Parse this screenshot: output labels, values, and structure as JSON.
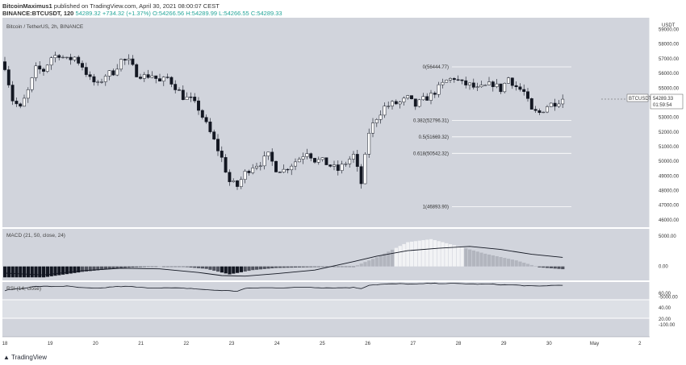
{
  "header": {
    "author": "BitcoinMaximus1",
    "published_text": "published on TradingView.com, April 30, 2021 08:00:07 CEST",
    "symbol": "BINANCE:BTCUSDT, 120",
    "last": "54289.32",
    "change": "+734.32 (+1.37%)",
    "open": "O:54266.56",
    "high": "H:54289.99",
    "low": "L:54266.55",
    "close": "C:54289.33"
  },
  "footer": {
    "brand": "TradingView"
  },
  "chart_data": {
    "type": "candlestick",
    "title": "Bitcoin / TetherUS, 2h, BINANCE",
    "currency": "USDT",
    "price_label": "BTCUSDT",
    "last_price": "54289.33",
    "countdown": "01:59:54",
    "ylim": [
      45500,
      59800
    ],
    "y_ticks": [
      "59000.00",
      "58000.00",
      "57000.00",
      "56000.00",
      "55000.00",
      "54000.00",
      "53000.00",
      "52000.00",
      "51000.00",
      "50000.00",
      "49000.00",
      "48000.00",
      "47000.00",
      "46000.00"
    ],
    "x_ticks": [
      "18",
      "19",
      "20",
      "21",
      "22",
      "23",
      "24",
      "25",
      "26",
      "27",
      "28",
      "29",
      "30",
      "May",
      "2"
    ],
    "close_path": [
      [
        0,
        56500
      ],
      [
        2,
        54200
      ],
      [
        4,
        53600
      ],
      [
        6,
        54800
      ],
      [
        8,
        56300
      ],
      [
        10,
        56200
      ],
      [
        12,
        57100
      ],
      [
        14,
        57300
      ],
      [
        16,
        56900
      ],
      [
        18,
        57100
      ],
      [
        20,
        56500
      ],
      [
        22,
        55600
      ],
      [
        24,
        55200
      ],
      [
        26,
        55900
      ],
      [
        28,
        56100
      ],
      [
        30,
        56900
      ],
      [
        32,
        56800
      ],
      [
        34,
        56000
      ],
      [
        36,
        55800
      ],
      [
        38,
        55900
      ],
      [
        40,
        55400
      ],
      [
        42,
        55700
      ],
      [
        44,
        55100
      ],
      [
        46,
        54400
      ],
      [
        48,
        54200
      ],
      [
        50,
        53600
      ],
      [
        52,
        52500
      ],
      [
        54,
        51400
      ],
      [
        56,
        50200
      ],
      [
        58,
        48600
      ],
      [
        60,
        48300
      ],
      [
        62,
        49200
      ],
      [
        64,
        49700
      ],
      [
        66,
        49900
      ],
      [
        68,
        50400
      ],
      [
        70,
        49500
      ],
      [
        72,
        49400
      ],
      [
        74,
        49800
      ],
      [
        76,
        50200
      ],
      [
        78,
        50700
      ],
      [
        80,
        50100
      ],
      [
        82,
        50000
      ],
      [
        84,
        49700
      ],
      [
        86,
        49400
      ],
      [
        88,
        49900
      ],
      [
        90,
        50400
      ],
      [
        92,
        48500
      ],
      [
        94,
        52000
      ],
      [
        96,
        53000
      ],
      [
        98,
        53700
      ],
      [
        100,
        53900
      ],
      [
        102,
        54000
      ],
      [
        104,
        54300
      ],
      [
        106,
        53800
      ],
      [
        108,
        54200
      ],
      [
        110,
        54500
      ],
      [
        112,
        55000
      ],
      [
        114,
        55500
      ],
      [
        116,
        55700
      ],
      [
        118,
        55300
      ],
      [
        120,
        55200
      ],
      [
        122,
        54900
      ],
      [
        124,
        55100
      ],
      [
        126,
        55300
      ],
      [
        128,
        54900
      ],
      [
        130,
        55700
      ],
      [
        132,
        55100
      ],
      [
        134,
        54700
      ],
      [
        136,
        53400
      ],
      [
        138,
        53300
      ],
      [
        140,
        53800
      ],
      [
        142,
        54000
      ],
      [
        144,
        54289
      ]
    ],
    "fibonacci": [
      {
        "label": "0(56444.77)",
        "value": 56444.77
      },
      {
        "label": "0.382(52796.31)",
        "value": 52796.31
      },
      {
        "label": "0.5(51669.32)",
        "value": 51669.32
      },
      {
        "label": "0.618(50542.32)",
        "value": 50542.32
      },
      {
        "label": "1(46893.90)",
        "value": 46893.9
      }
    ],
    "macd": {
      "label": "MACD (21, 50, close, 24)",
      "ylim": [
        -2300,
        6200
      ],
      "y_ticks": [
        "5000.00",
        "0.00",
        "-5000.00"
      ],
      "histogram_path": [
        [
          0,
          -1800
        ],
        [
          10,
          -1800
        ],
        [
          20,
          -900
        ],
        [
          30,
          -250
        ],
        [
          40,
          0
        ],
        [
          46,
          -50
        ],
        [
          52,
          -400
        ],
        [
          58,
          -1300
        ],
        [
          64,
          -600
        ],
        [
          70,
          -250
        ],
        [
          80,
          -100
        ],
        [
          90,
          -50
        ],
        [
          96,
          1500
        ],
        [
          104,
          4000
        ],
        [
          110,
          4500
        ],
        [
          116,
          3500
        ],
        [
          124,
          2100
        ],
        [
          132,
          1000
        ],
        [
          138,
          -150
        ],
        [
          144,
          -450
        ]
      ],
      "signal_path": [
        [
          0,
          -1100
        ],
        [
          10,
          -1400
        ],
        [
          20,
          -700
        ],
        [
          30,
          -300
        ],
        [
          40,
          -400
        ],
        [
          50,
          -1000
        ],
        [
          56,
          -1500
        ],
        [
          62,
          -1600
        ],
        [
          70,
          -1200
        ],
        [
          80,
          -600
        ],
        [
          90,
          800
        ],
        [
          96,
          1700
        ],
        [
          104,
          2600
        ],
        [
          112,
          3000
        ],
        [
          120,
          3300
        ],
        [
          128,
          2800
        ],
        [
          136,
          2000
        ],
        [
          144,
          1500
        ]
      ]
    },
    "rsi": {
      "label": "RSI (14, close)",
      "ylim": [
        -320,
        88
      ],
      "y_ticks": [
        "60.00",
        "40.00",
        "20.00",
        "-100.00"
      ],
      "band": [
        35,
        65
      ],
      "line_path": [
        [
          0,
          25
        ],
        [
          2,
          35
        ],
        [
          4,
          40
        ],
        [
          8,
          55
        ],
        [
          12,
          55
        ],
        [
          16,
          57
        ],
        [
          20,
          45
        ],
        [
          24,
          40
        ],
        [
          28,
          53
        ],
        [
          32,
          55
        ],
        [
          36,
          45
        ],
        [
          40,
          45
        ],
        [
          44,
          43
        ],
        [
          48,
          40
        ],
        [
          52,
          30
        ],
        [
          56,
          25
        ],
        [
          60,
          20
        ],
        [
          62,
          40
        ],
        [
          66,
          45
        ],
        [
          70,
          45
        ],
        [
          74,
          46
        ],
        [
          78,
          50
        ],
        [
          82,
          45
        ],
        [
          86,
          45
        ],
        [
          90,
          47
        ],
        [
          92,
          40
        ],
        [
          94,
          65
        ],
        [
          98,
          72
        ],
        [
          102,
          75
        ],
        [
          106,
          72
        ],
        [
          110,
          78
        ],
        [
          114,
          77
        ],
        [
          118,
          76
        ],
        [
          122,
          72
        ],
        [
          126,
          72
        ],
        [
          128,
          68
        ],
        [
          132,
          65
        ],
        [
          136,
          58
        ],
        [
          138,
          57
        ],
        [
          140,
          61
        ],
        [
          142,
          63
        ],
        [
          144,
          66
        ]
      ]
    }
  }
}
